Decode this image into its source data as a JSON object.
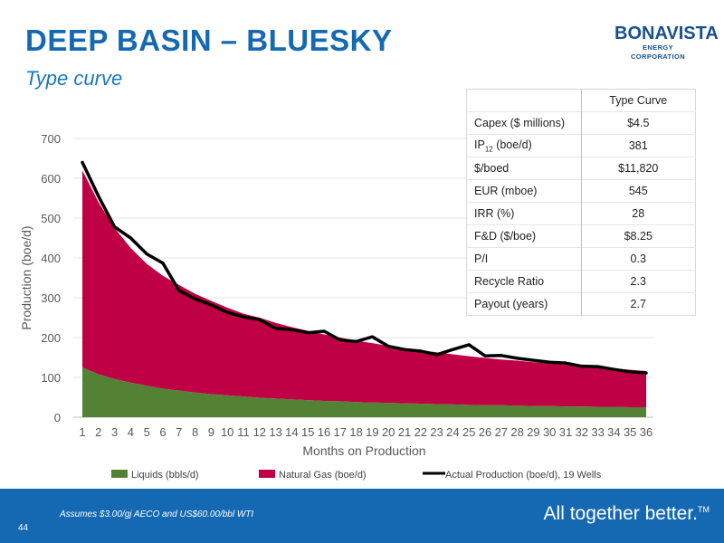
{
  "header": {
    "title": "DEEP BASIN – BLUESKY",
    "subtitle": "Type curve",
    "logo_name": "BONAVISTA",
    "logo_sub": "ENERGY CORPORATION"
  },
  "table": {
    "header": "Type Curve",
    "rows": [
      {
        "label": "Capex ($ millions)",
        "value": "$4.5"
      },
      {
        "label": "IP",
        "sub": "12",
        "suffix": " (boe/d)",
        "value": "381"
      },
      {
        "label": "$/boed",
        "value": "$11,820"
      },
      {
        "label": "EUR (mboe)",
        "value": "545"
      },
      {
        "label": "IRR (%)",
        "value": "28"
      },
      {
        "label": "F&D ($/boe)",
        "value": "$8.25"
      },
      {
        "label": "P/I",
        "value": "0.3"
      },
      {
        "label": "Recycle Ratio",
        "value": "2.3"
      },
      {
        "label": "Payout (years)",
        "value": "2.7"
      }
    ]
  },
  "colors": {
    "liquids": "#548235",
    "gas": "#c00044",
    "actual": "#000000",
    "brand": "#1569b3"
  },
  "chart_data": {
    "type": "area",
    "xlabel": "Months on Production",
    "ylabel": "Production (boe/d)",
    "ylim": [
      0,
      700
    ],
    "yticks": [
      0,
      100,
      200,
      300,
      400,
      500,
      600,
      700
    ],
    "grid": "horizontal",
    "legend_position": "bottom",
    "x": [
      1,
      2,
      3,
      4,
      5,
      6,
      7,
      8,
      9,
      10,
      11,
      12,
      13,
      14,
      15,
      16,
      17,
      18,
      19,
      20,
      21,
      22,
      23,
      24,
      25,
      26,
      27,
      28,
      29,
      30,
      31,
      32,
      33,
      34,
      35,
      36
    ],
    "series": [
      {
        "name": "Liquids (bbls/d)",
        "kind": "area",
        "color": "#548235",
        "values": [
          125,
          108,
          96,
          87,
          79,
          72,
          67,
          62,
          58,
          55,
          52,
          49,
          47,
          45,
          43,
          41,
          40,
          38,
          37,
          36,
          35,
          34,
          33,
          32,
          31,
          30,
          30,
          29,
          28,
          28,
          27,
          27,
          26,
          26,
          25,
          25
        ]
      },
      {
        "name": "Natural Gas (boe/d)",
        "kind": "stacked-area",
        "color": "#c00044",
        "values": [
          620,
          540,
          475,
          425,
          385,
          355,
          332,
          310,
          292,
          275,
          260,
          250,
          237,
          226,
          217,
          208,
          200,
          192,
          186,
          179,
          173,
          168,
          163,
          158,
          153,
          149,
          145,
          142,
          138,
          135,
          132,
          129,
          126,
          123,
          119,
          116
        ]
      },
      {
        "name": "Actual Production (boe/d), 19 Wells",
        "kind": "line",
        "color": "#000000",
        "values": [
          640,
          555,
          478,
          450,
          410,
          387,
          318,
          297,
          282,
          263,
          252,
          245,
          223,
          220,
          212,
          216,
          194,
          190,
          202,
          178,
          170,
          166,
          157,
          170,
          182,
          154,
          155,
          148,
          143,
          138,
          136,
          128,
          127,
          120,
          114,
          111
        ]
      }
    ]
  },
  "footer": {
    "note": "Assumes $3.00/gj AECO and US$60.00/bbl WTI",
    "page": "44",
    "tagline": "All together better.",
    "tm": "TM"
  }
}
